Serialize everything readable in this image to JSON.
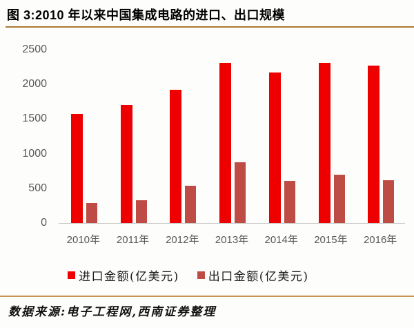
{
  "header": {
    "title": "图 3:2010 年以来中国集成电路的进口、出口规模"
  },
  "chart_data": {
    "type": "bar",
    "title": "图 3:2010 年以来中国集成电路的进口、出口规模",
    "categories": [
      "2010年",
      "2011年",
      "2012年",
      "2013年",
      "2014年",
      "2015年",
      "2016年"
    ],
    "series": [
      {
        "name": "进口金额(亿美元)",
        "color": "#ee0000",
        "values": [
          1570,
          1702,
          1921,
          2313,
          2176,
          2307,
          2271
        ]
      },
      {
        "name": "出口金额(亿美元)",
        "color": "#bf4b45",
        "values": [
          292,
          326,
          534,
          877,
          609,
          693,
          614
        ]
      }
    ],
    "xlabel": "",
    "ylabel": "",
    "ylim": [
      0,
      2500
    ],
    "yticks": [
      0,
      500,
      1000,
      1500,
      2000,
      2500
    ],
    "grid": false,
    "legend_position": "bottom"
  },
  "footer": {
    "source": "数据来源:电子工程网,西南证券整理"
  },
  "colors": {
    "import_red": "#ee0000",
    "export_brick": "#bf4b45",
    "axis_text": "#595959",
    "gold_rule_top": "#aa7a33",
    "gold_rule_bottom": "#c3964f",
    "baseline_gray": "#c9c9c9"
  }
}
